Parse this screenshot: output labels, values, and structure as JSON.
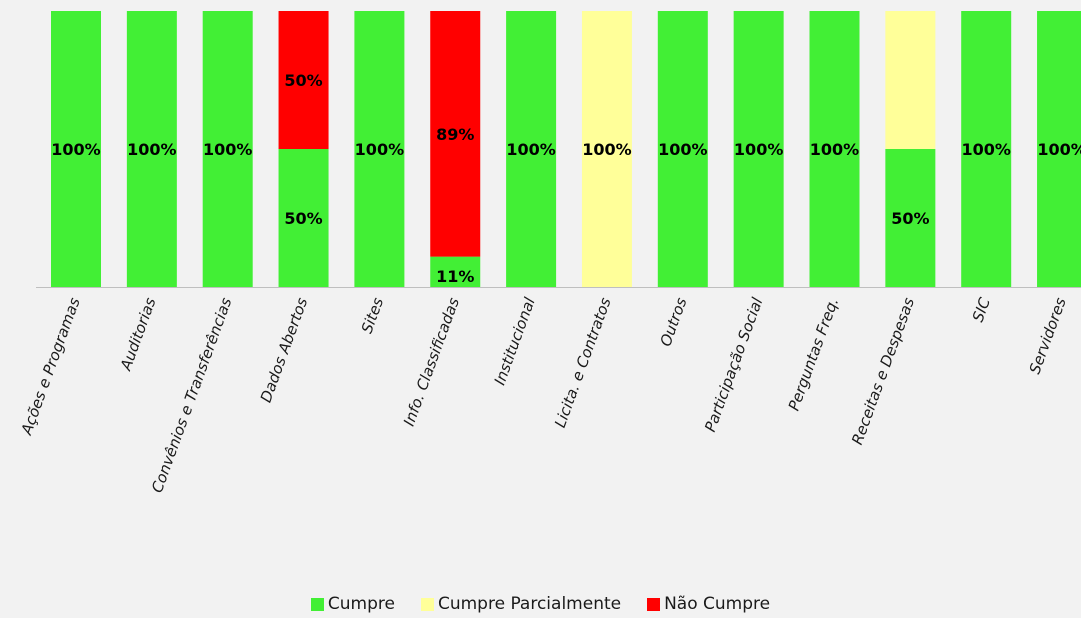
{
  "chart_data": {
    "type": "bar",
    "stacked": true,
    "categories": [
      "Ações e Programas",
      "Auditorias",
      "Convênios e Transferências",
      "Dados Abertos",
      "Sites",
      "Info. Classificadas",
      "Institucional",
      "Licita. e Contratos",
      "Outros",
      "Participação Social",
      "Perguntas Freq.",
      "Receitas e Despesas",
      "SIC",
      "Servidores"
    ],
    "series": [
      {
        "name": "Cumpre",
        "color": "#42ef35",
        "values": [
          100,
          100,
          100,
          50,
          100,
          11,
          100,
          0,
          100,
          100,
          100,
          50,
          100,
          100
        ]
      },
      {
        "name": "Cumpre Parcialmente",
        "color": "#ffff99",
        "values": [
          0,
          0,
          0,
          0,
          0,
          0,
          0,
          100,
          0,
          0,
          0,
          50,
          0,
          0
        ]
      },
      {
        "name": "Não Cumpre",
        "color": "#ff0000",
        "values": [
          0,
          0,
          0,
          50,
          0,
          89,
          0,
          0,
          0,
          0,
          0,
          0,
          0,
          0
        ]
      }
    ],
    "data_labels": [
      [
        "100%",
        "",
        ""
      ],
      [
        "100%",
        "",
        ""
      ],
      [
        "100%",
        "",
        ""
      ],
      [
        "50%",
        "",
        "50%"
      ],
      [
        "100%",
        "",
        ""
      ],
      [
        "11%",
        "",
        "89%"
      ],
      [
        "100%",
        "",
        ""
      ],
      [
        "",
        "100%",
        ""
      ],
      [
        "100%",
        "",
        ""
      ],
      [
        "100%",
        "",
        ""
      ],
      [
        "100%",
        "",
        ""
      ],
      [
        "50%",
        "",
        ""
      ],
      [
        "100%",
        "",
        ""
      ],
      [
        "100%",
        "",
        ""
      ]
    ],
    "ylim": [
      0,
      100
    ],
    "grid": false,
    "legend_position": "bottom"
  }
}
